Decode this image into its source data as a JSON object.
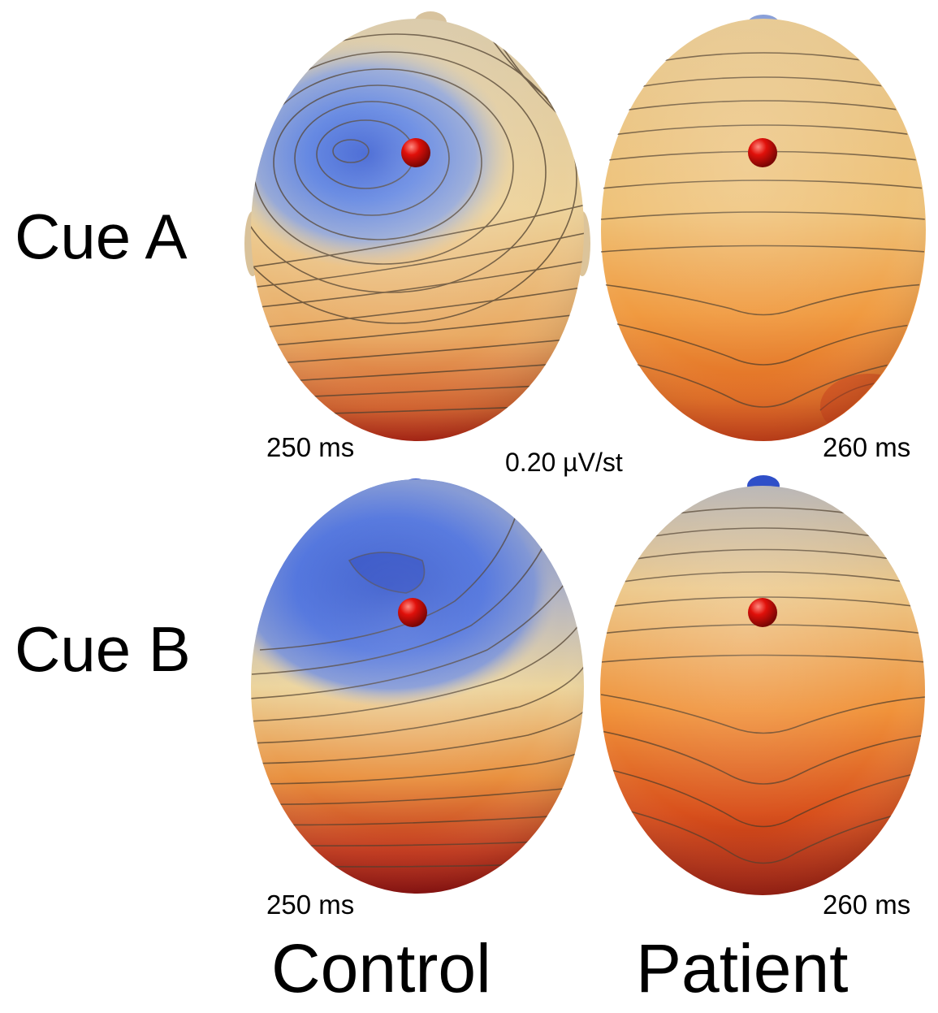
{
  "rows": [
    {
      "label": "Cue A"
    },
    {
      "label": "Cue B"
    }
  ],
  "columns": [
    {
      "label": "Control"
    },
    {
      "label": "Patient"
    }
  ],
  "maps": [
    {
      "row": "Cue A",
      "group": "Control",
      "time": "250 ms"
    },
    {
      "row": "Cue A",
      "group": "Patient",
      "time": "260 ms"
    },
    {
      "row": "Cue B",
      "group": "Control",
      "time": "250 ms"
    },
    {
      "row": "Cue B",
      "group": "Patient",
      "time": "260 ms"
    }
  ],
  "scale": "0.20 µV/st",
  "colors": {
    "negative": "#3f63d6",
    "neutral": "#e8d2a4",
    "positive": "#f08a2c",
    "strong_positive": "#b01a0e",
    "contour": "#4a3a28",
    "electrode": "#e0100a"
  }
}
